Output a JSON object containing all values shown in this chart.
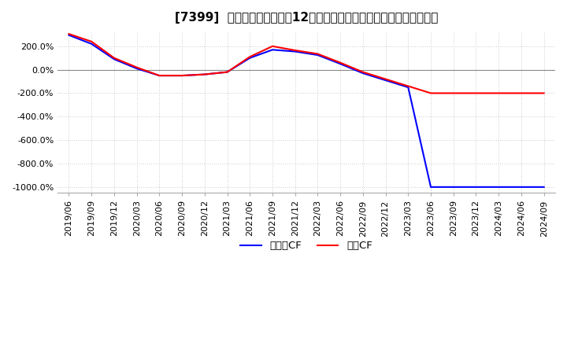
{
  "title": "[7399]  キャッシュフローの12か月移動合計の対前年同期増減率の推移",
  "legend_labels": [
    "営業CF",
    "フリーCF"
  ],
  "legend_colors": [
    "#ff0000",
    "#0000ff"
  ],
  "ylim": [
    -1050,
    320
  ],
  "yticks": [
    200,
    0,
    -200,
    -400,
    -600,
    -800,
    -1000
  ],
  "ytick_labels": [
    "200.0%",
    "0.0%",
    "-200.0%",
    "-400.0%",
    "-600.0%",
    "-800.0%",
    "-1000.0%"
  ],
  "x_labels": [
    "2019/06",
    "2019/09",
    "2019/12",
    "2020/03",
    "2020/06",
    "2020/09",
    "2020/12",
    "2021/03",
    "2021/06",
    "2021/09",
    "2021/12",
    "2022/03",
    "2022/06",
    "2022/09",
    "2022/12",
    "2023/03",
    "2023/06",
    "2023/09",
    "2023/12",
    "2024/03",
    "2024/06",
    "2024/09"
  ],
  "operating_cf": [
    305,
    240,
    100,
    20,
    -50,
    -50,
    -40,
    -20,
    110,
    200,
    165,
    135,
    60,
    -20,
    -80,
    -140,
    -200,
    -200,
    -200,
    -200,
    -200,
    -200
  ],
  "free_cf": [
    295,
    220,
    90,
    10,
    -50,
    -50,
    -40,
    -20,
    100,
    170,
    155,
    125,
    50,
    -30,
    -90,
    -150,
    -1000,
    -1000,
    -1000,
    -1000,
    -1000,
    -1000
  ],
  "line_width": 1.5,
  "background_color": "#ffffff",
  "grid_color": "#cccccc",
  "grid_style": "dotted",
  "title_fontsize": 11,
  "tick_fontsize": 8,
  "font_family": "IPAexGothic"
}
